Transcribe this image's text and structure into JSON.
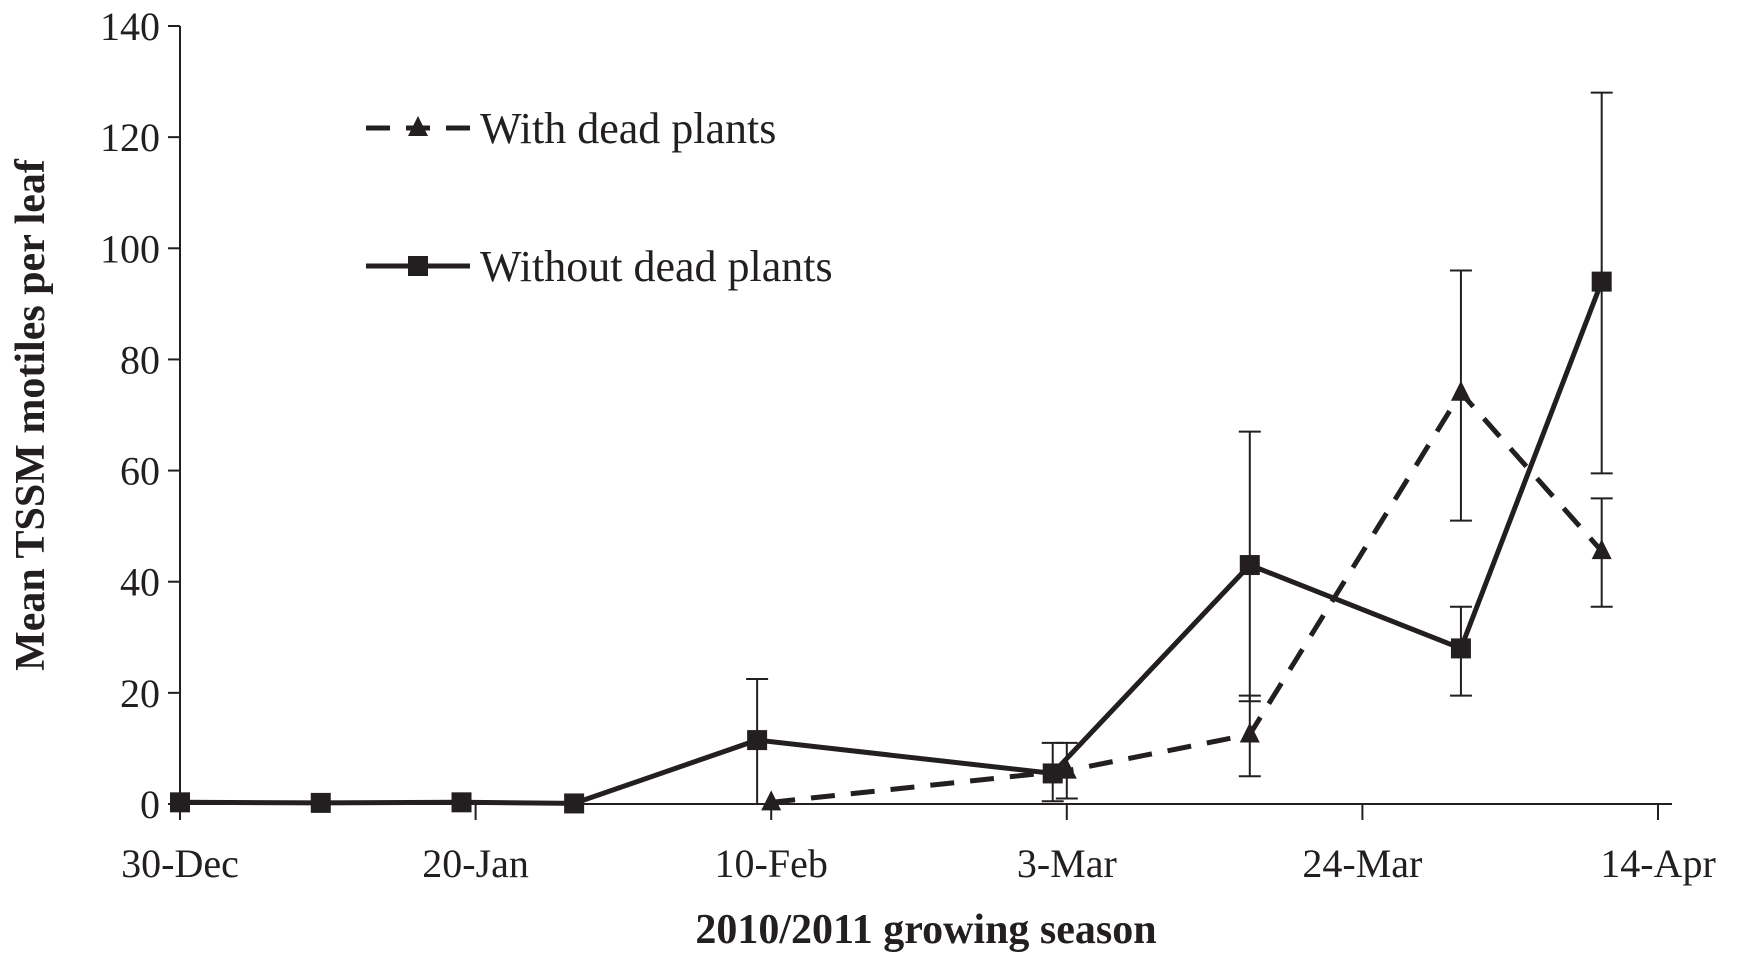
{
  "chart_data": {
    "type": "line",
    "title": "",
    "xlabel": "2010/2011 growing season",
    "ylabel": "Mean TSSM motiles per leaf",
    "ylim": [
      0,
      140
    ],
    "yticks": [
      0,
      20,
      40,
      60,
      80,
      100,
      120,
      140
    ],
    "xlim": [
      "2010-12-30",
      "2011-04-14"
    ],
    "xticks": [
      {
        "date": "2010-12-30",
        "label": "30-Dec"
      },
      {
        "date": "2011-01-20",
        "label": "20-Jan"
      },
      {
        "date": "2011-02-10",
        "label": "10-Feb"
      },
      {
        "date": "2011-03-03",
        "label": "3-Mar"
      },
      {
        "date": "2011-03-24",
        "label": "24-Mar"
      },
      {
        "date": "2011-04-14",
        "label": "14-Apr"
      }
    ],
    "legend_position": "top-left",
    "grid": false,
    "series": [
      {
        "name": "With dead plants",
        "style": "dashed",
        "marker": "triangle",
        "color": "#231f20",
        "points": [
          {
            "x": "2011-02-10",
            "y": 0.3
          },
          {
            "x": "2011-03-03",
            "y": 6,
            "err_low": 1,
            "err_high": 11
          },
          {
            "x": "2011-03-16",
            "y": 12.5,
            "err_low": 5,
            "err_high": 19.5
          },
          {
            "x": "2011-03-31",
            "y": 74,
            "err_low": 51,
            "err_high": 96
          },
          {
            "x": "2011-04-10",
            "y": 45.5,
            "err_low": 35.5,
            "err_high": 55
          }
        ]
      },
      {
        "name": "Without dead plants",
        "style": "solid",
        "marker": "square",
        "color": "#231f20",
        "points": [
          {
            "x": "2010-12-30",
            "y": 0.3
          },
          {
            "x": "2011-01-09",
            "y": 0.2
          },
          {
            "x": "2011-01-19",
            "y": 0.3
          },
          {
            "x": "2011-01-27",
            "y": 0.1
          },
          {
            "x": "2011-02-09",
            "y": 11.5,
            "err_low": 0,
            "err_high": 22.5
          },
          {
            "x": "2011-03-02",
            "y": 5.5,
            "err_low": 0.5,
            "err_high": 11
          },
          {
            "x": "2011-03-16",
            "y": 43,
            "err_low": 18.5,
            "err_high": 67
          },
          {
            "x": "2011-03-31",
            "y": 28,
            "err_low": 19.5,
            "err_high": 35.5
          },
          {
            "x": "2011-04-10",
            "y": 94,
            "err_low": 59.5,
            "err_high": 128
          }
        ]
      }
    ]
  }
}
